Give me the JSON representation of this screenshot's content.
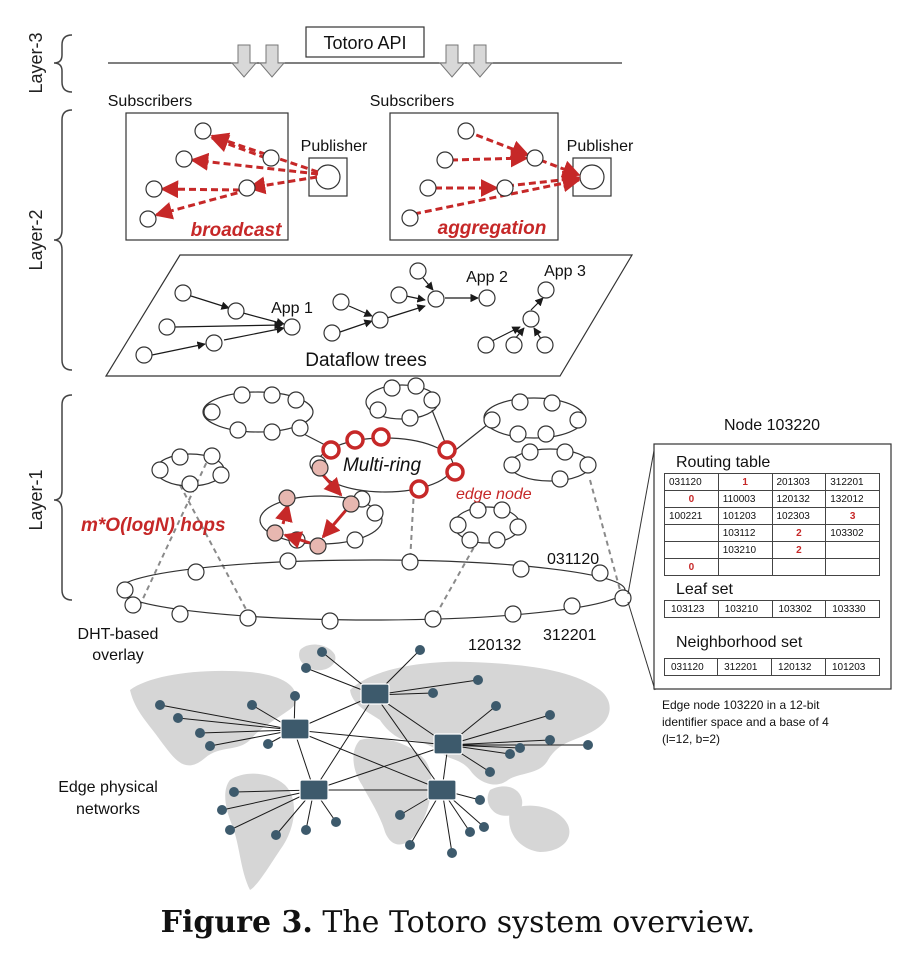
{
  "layers": {
    "l3": "Layer-3",
    "l2": "Layer-2",
    "l1": "Layer-1"
  },
  "api": "Totoro API",
  "subscribers": "Subscribers",
  "publisher": "Publisher",
  "broadcast": "broadcast",
  "aggregation": "aggregation",
  "apps": {
    "app1": "App 1",
    "app2": "App 2",
    "app3": "App 3"
  },
  "dataflow": "Dataflow trees",
  "multiring": "Multi-ring",
  "edge_node": "edge node",
  "hops": "m*O(logN) hops",
  "ids": {
    "a": "031120",
    "b": "120132",
    "c": "312201"
  },
  "overlay": {
    "line1": "DHT-based",
    "line2": "overlay"
  },
  "physical": {
    "line1": "Edge physical",
    "line2": "networks"
  },
  "node_panel": {
    "title": "Node 103220",
    "routing_title": "Routing table",
    "routing_rows": [
      [
        "031120",
        "1",
        "201303",
        "312201"
      ],
      [
        "0",
        "110003",
        "120132",
        "132012"
      ],
      [
        "100221",
        "101203",
        "102303",
        "3"
      ],
      [
        "",
        "103112",
        "2",
        "103302"
      ],
      [
        "",
        "103210",
        "2",
        ""
      ],
      [
        "0",
        "",
        "",
        ""
      ]
    ],
    "leaf_title": "Leaf set",
    "leaf": [
      "103123",
      "103210",
      "103302",
      "103330"
    ],
    "neigh_title": "Neighborhood set",
    "neigh": [
      "031120",
      "312201",
      "120132",
      "101203"
    ],
    "note1": "Edge node 103220 in a 12-bit",
    "note2": "identifier space and a base of 4",
    "note3": "(l=12, b=2)"
  },
  "caption": {
    "label": "Figure 3.",
    "text": " The Totoro system overview."
  },
  "colors": {
    "red": "#c62828",
    "dark": "#1a1a1a",
    "gray": "#8a8a8a",
    "map": "#d6d6d6",
    "device": "#3d5a6c"
  }
}
